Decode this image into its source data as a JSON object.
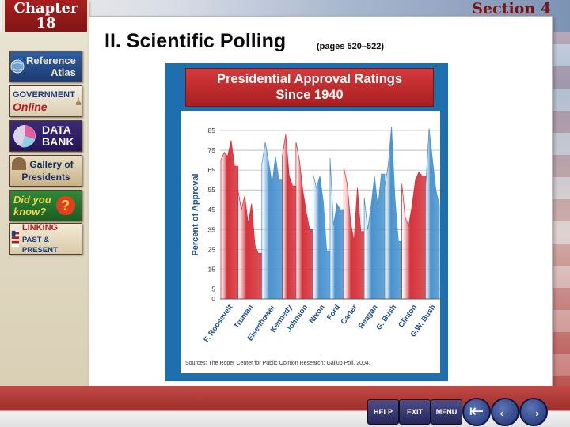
{
  "header": {
    "chapter_label": "Chapter",
    "chapter_number": "18",
    "section_label": "Section 4"
  },
  "sidebar": {
    "items": [
      {
        "label": "Reference Atlas",
        "line1": "Reference",
        "line2": "Atlas",
        "icon": "globe-icon"
      },
      {
        "label": "Government Online",
        "line1": "GOVERNMENT",
        "line2": "Online",
        "icon": "capitol-icon"
      },
      {
        "label": "Data Bank",
        "line1": "DATA",
        "line2": "BANK",
        "icon": "pie-chart-icon"
      },
      {
        "label": "Gallery of Presidents",
        "line1": "Gallery of",
        "line2": "Presidents",
        "icon": "portraits-icon"
      },
      {
        "label": "Did you know?",
        "line1": "Did you",
        "line2": "know?",
        "icon": "question-icon"
      },
      {
        "label": "Linking Past & Present",
        "line1": "LINKING",
        "line2": "PAST & PRESENT",
        "icon": "flag-icon"
      }
    ]
  },
  "main": {
    "title": "II. Scientific Polling",
    "subtitle": "(pages 520–522)"
  },
  "chart_data": {
    "type": "area",
    "title": "Presidential Approval Ratings Since 1940",
    "ylabel": "Percent of Approval",
    "ylim": [
      0,
      85
    ],
    "yticks": [
      "85",
      "75",
      "65",
      "55",
      "45",
      "35",
      "25",
      "15",
      "5",
      "0"
    ],
    "categories": [
      "F. Roosevelt",
      "Truman",
      "Eisenhower",
      "Kennedy",
      "Johnson",
      "Nixon",
      "Ford",
      "Carter",
      "Reagan",
      "G. Bush",
      "Clinton",
      "G.W. Bush"
    ],
    "segments": [
      {
        "president": "F. Roosevelt",
        "party": "D",
        "values": [
          70,
          74,
          72,
          80,
          67
        ]
      },
      {
        "president": "Truman",
        "party": "D",
        "values": [
          55,
          45,
          52,
          38,
          48,
          27,
          23
        ]
      },
      {
        "president": "Eisenhower",
        "party": "R",
        "values": [
          68,
          79,
          69,
          58,
          72,
          60
        ]
      },
      {
        "president": "Kennedy",
        "party": "D",
        "values": [
          72,
          83,
          62,
          57
        ]
      },
      {
        "president": "Johnson",
        "party": "D",
        "values": [
          79,
          70,
          55,
          44,
          35
        ]
      },
      {
        "president": "Nixon",
        "party": "R",
        "values": [
          63,
          56,
          62,
          49,
          24
        ]
      },
      {
        "president": "Ford",
        "party": "R",
        "values": [
          71,
          37,
          48,
          45
        ]
      },
      {
        "president": "Carter",
        "party": "D",
        "values": [
          66,
          58,
          39,
          29,
          56,
          34
        ]
      },
      {
        "president": "Reagan",
        "party": "R",
        "values": [
          51,
          35,
          47,
          62,
          46,
          63
        ]
      },
      {
        "president": "G. Bush",
        "party": "R",
        "values": [
          57,
          67,
          87,
          51,
          29
        ]
      },
      {
        "president": "Clinton",
        "party": "D",
        "values": [
          58,
          41,
          37,
          47,
          60,
          64,
          62
        ]
      },
      {
        "president": "G.W. Bush",
        "party": "R",
        "values": [
          57,
          86,
          70,
          55,
          47
        ]
      }
    ],
    "colors": {
      "D": "#d6333b",
      "R": "#4a93cf"
    },
    "grid": true,
    "source": "Sources: The Roper Center for Public Opinion Research; Gallup Poll, 2004."
  },
  "footer": {
    "buttons": [
      {
        "label": "HELP"
      },
      {
        "label": "EXIT"
      },
      {
        "label": "MENU"
      }
    ],
    "arrows": [
      {
        "label": "first-slide",
        "glyph": "⇤"
      },
      {
        "label": "previous-slide",
        "glyph": "←"
      },
      {
        "label": "next-slide",
        "glyph": "→"
      }
    ]
  }
}
